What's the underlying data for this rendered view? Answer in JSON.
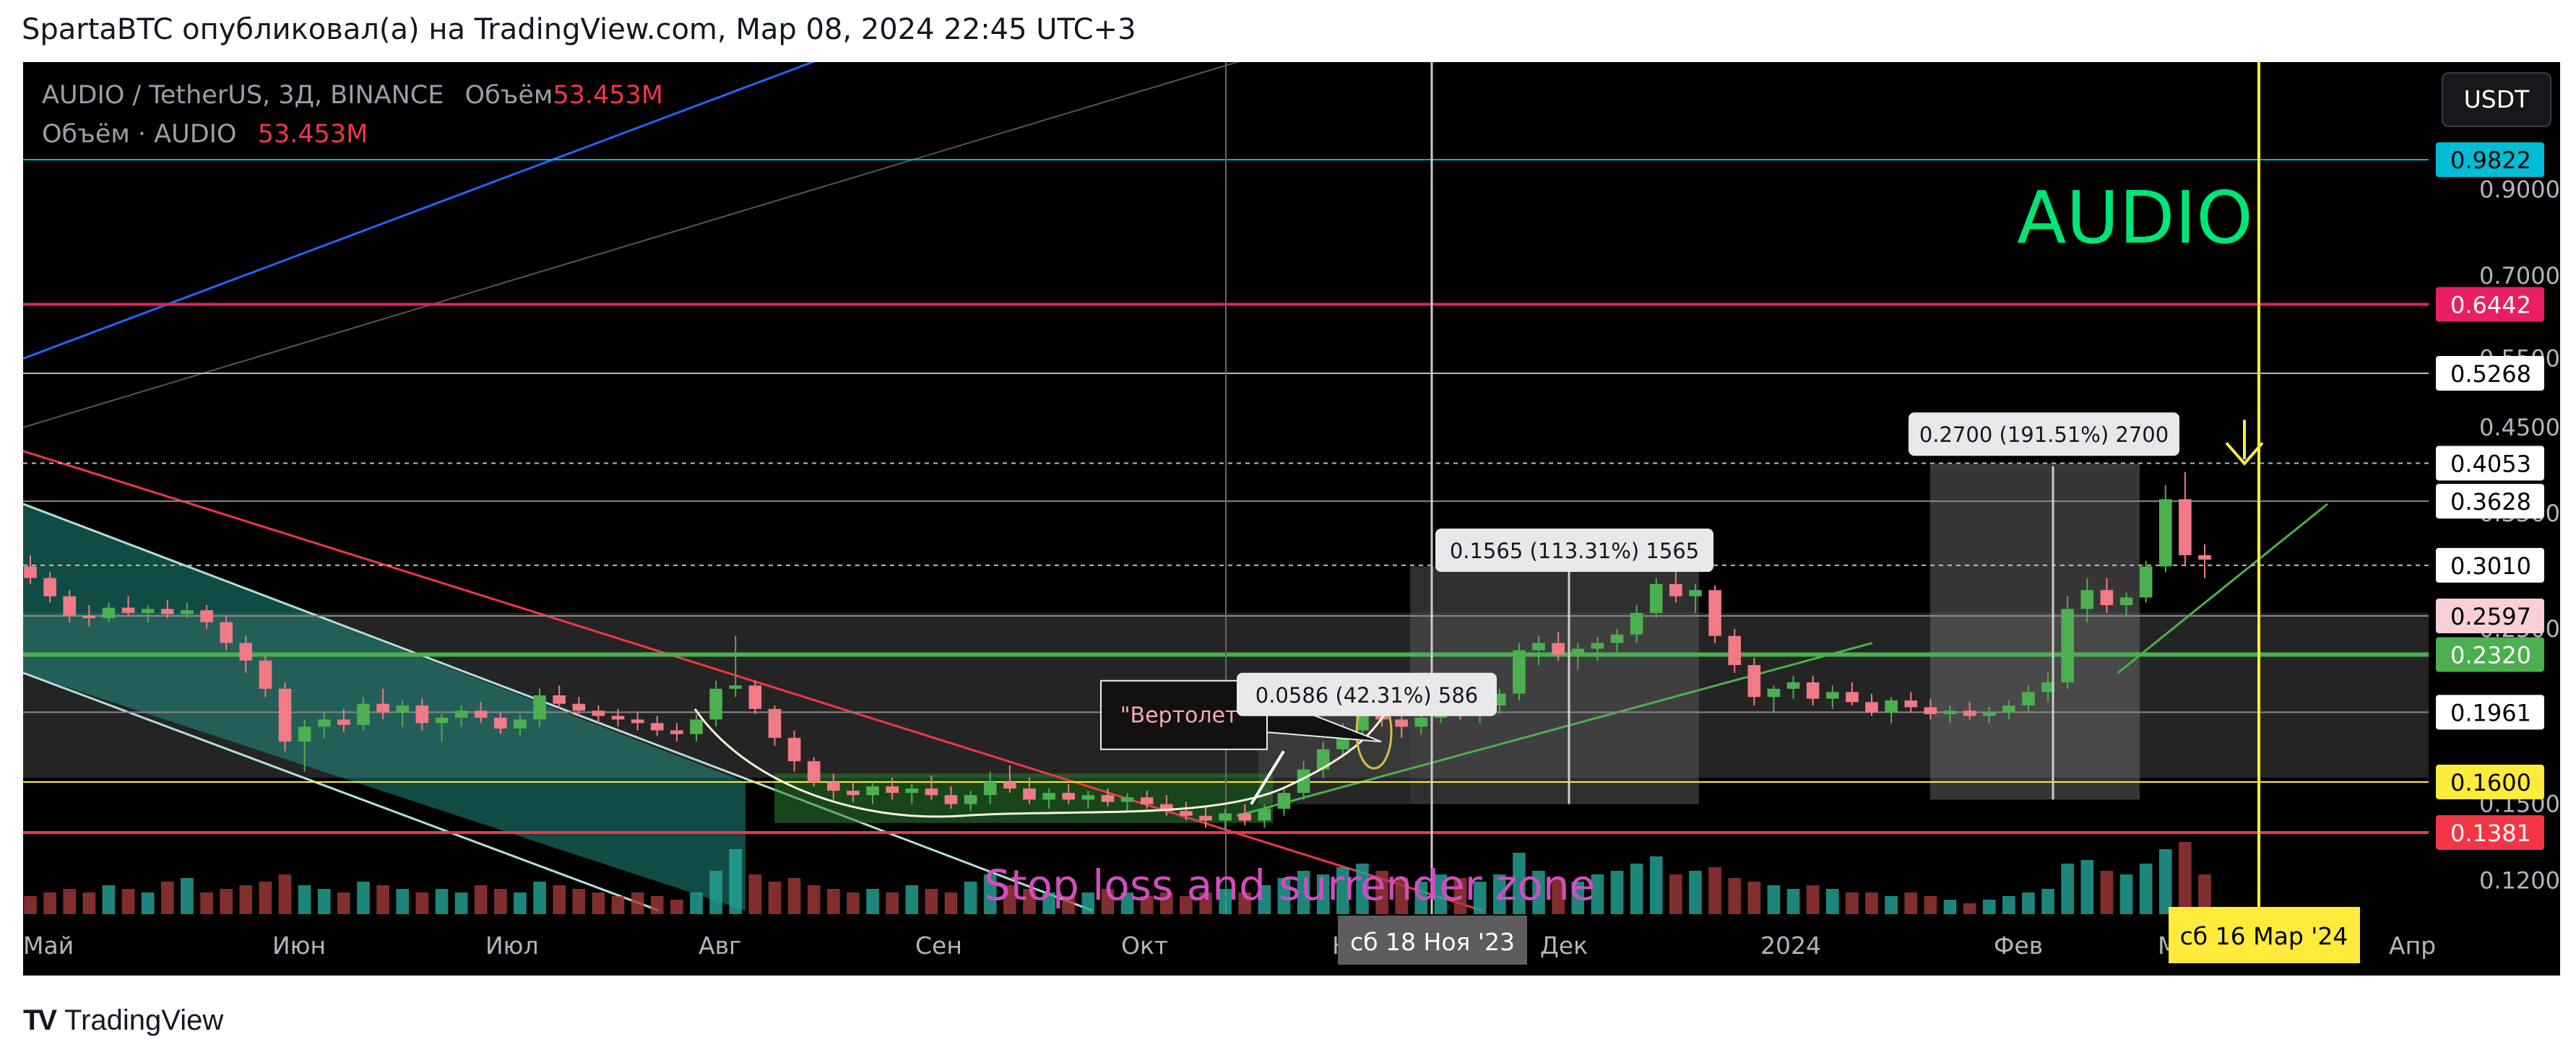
{
  "header": {
    "attribution": "SpartaBTC опубликовал(а) на TradingView.com, Мар 08, 2024 22:45 UTC+3"
  },
  "legend": {
    "symbol_line": "AUDIO / TetherUS, 3Д, BINANCE",
    "volume_label": "Объём",
    "volume_value": "53.453M",
    "volume_line_label": "Объём · AUDIO",
    "volume_line_value": "53.453M"
  },
  "currency_badge": "USDT",
  "annotations": {
    "big_title": "AUDIO",
    "stop_zone": "Stop loss and surrender zone",
    "callout": "\"Вертолет\"",
    "measure1": "0.0586 (42.31%) 586",
    "measure2": "0.1565 (113.31%) 1565",
    "measure3": "0.2700 (191.51%) 2700"
  },
  "time_axis": {
    "labels": [
      "Май",
      "Июн",
      "Июл",
      "Авг",
      "Сен",
      "Окт",
      "Ноя",
      "Дек",
      "2024",
      "Фев",
      "Мар",
      "Апр"
    ],
    "crosshair_left": "сб 18 Ноя '23",
    "crosshair_right": "сб 16 Мар '24"
  },
  "price_axis": {
    "ticks": [
      "0.9000",
      "0.7000",
      "0.5500",
      "0.4500",
      "0.3500",
      "0.2500",
      "0.1500",
      "0.1200"
    ],
    "tags": [
      {
        "text": "0.9822",
        "bg": "#00bcd4",
        "fg": "#000000"
      },
      {
        "text": "0.6442",
        "bg": "#e91e63",
        "fg": "#ffffff"
      },
      {
        "text": "0.5268",
        "bg": "#ffffff",
        "fg": "#000000"
      },
      {
        "text": "0.4053",
        "bg": "#ffffff",
        "fg": "#000000"
      },
      {
        "text": "0.3628",
        "bg": "#ffffff",
        "fg": "#000000"
      },
      {
        "text": "0.3010",
        "bg": "#ffffff",
        "fg": "#000000"
      },
      {
        "text": "0.2597",
        "bg": "#f8d0d5",
        "fg": "#000000"
      },
      {
        "text": "0.2320",
        "bg": "#4caf50",
        "fg": "#ffffff"
      },
      {
        "text": "0.1961",
        "bg": "#ffffff",
        "fg": "#000000"
      },
      {
        "text": "0.1600",
        "bg": "#ffeb3b",
        "fg": "#000000"
      },
      {
        "text": "0.1381",
        "bg": "#f23645",
        "fg": "#ffffff"
      }
    ]
  },
  "chart_data": {
    "type": "candlestick",
    "symbol": "AUDIO / TetherUS",
    "interval": "3Д",
    "exchange": "BINANCE",
    "scale": "log",
    "ylim": [
      0.11,
      1.2
    ],
    "levels": [
      0.9822,
      0.6442,
      0.5268,
      0.4053,
      0.3628,
      0.301,
      0.2597,
      0.232,
      0.1961,
      0.16,
      0.1381
    ],
    "candles_ohlc": [
      [
        0.3,
        0.31,
        0.285,
        0.29
      ],
      [
        0.29,
        0.295,
        0.27,
        0.275
      ],
      [
        0.275,
        0.28,
        0.255,
        0.26
      ],
      [
        0.26,
        0.268,
        0.252,
        0.258
      ],
      [
        0.258,
        0.27,
        0.255,
        0.266
      ],
      [
        0.266,
        0.275,
        0.26,
        0.262
      ],
      [
        0.262,
        0.268,
        0.255,
        0.265
      ],
      [
        0.265,
        0.272,
        0.258,
        0.261
      ],
      [
        0.261,
        0.27,
        0.258,
        0.264
      ],
      [
        0.264,
        0.268,
        0.25,
        0.255
      ],
      [
        0.255,
        0.26,
        0.235,
        0.24
      ],
      [
        0.24,
        0.245,
        0.22,
        0.228
      ],
      [
        0.228,
        0.232,
        0.205,
        0.21
      ],
      [
        0.21,
        0.214,
        0.175,
        0.18
      ],
      [
        0.18,
        0.192,
        0.165,
        0.188
      ],
      [
        0.188,
        0.196,
        0.182,
        0.192
      ],
      [
        0.192,
        0.198,
        0.185,
        0.189
      ],
      [
        0.189,
        0.205,
        0.186,
        0.201
      ],
      [
        0.201,
        0.21,
        0.192,
        0.196
      ],
      [
        0.196,
        0.203,
        0.188,
        0.2
      ],
      [
        0.2,
        0.204,
        0.186,
        0.19
      ],
      [
        0.19,
        0.195,
        0.18,
        0.193
      ],
      [
        0.193,
        0.2,
        0.188,
        0.197
      ],
      [
        0.197,
        0.202,
        0.19,
        0.193
      ],
      [
        0.193,
        0.196,
        0.184,
        0.187
      ],
      [
        0.187,
        0.195,
        0.183,
        0.192
      ],
      [
        0.192,
        0.21,
        0.188,
        0.206
      ],
      [
        0.206,
        0.212,
        0.198,
        0.201
      ],
      [
        0.201,
        0.205,
        0.194,
        0.197
      ],
      [
        0.197,
        0.2,
        0.19,
        0.194
      ],
      [
        0.194,
        0.198,
        0.188,
        0.192
      ],
      [
        0.192,
        0.196,
        0.186,
        0.19
      ],
      [
        0.19,
        0.194,
        0.183,
        0.186
      ],
      [
        0.186,
        0.19,
        0.18,
        0.184
      ],
      [
        0.184,
        0.195,
        0.18,
        0.192
      ],
      [
        0.192,
        0.215,
        0.188,
        0.21
      ],
      [
        0.21,
        0.245,
        0.205,
        0.212
      ],
      [
        0.212,
        0.215,
        0.195,
        0.198
      ],
      [
        0.198,
        0.2,
        0.178,
        0.182
      ],
      [
        0.182,
        0.186,
        0.165,
        0.17
      ],
      [
        0.17,
        0.172,
        0.158,
        0.16
      ],
      [
        0.16,
        0.164,
        0.152,
        0.156
      ],
      [
        0.156,
        0.16,
        0.151,
        0.154
      ],
      [
        0.154,
        0.16,
        0.15,
        0.158
      ],
      [
        0.158,
        0.162,
        0.152,
        0.155
      ],
      [
        0.155,
        0.159,
        0.15,
        0.157
      ],
      [
        0.157,
        0.163,
        0.152,
        0.154
      ],
      [
        0.154,
        0.158,
        0.148,
        0.15
      ],
      [
        0.15,
        0.156,
        0.147,
        0.154
      ],
      [
        0.154,
        0.165,
        0.15,
        0.16
      ],
      [
        0.16,
        0.168,
        0.155,
        0.157
      ],
      [
        0.157,
        0.162,
        0.15,
        0.152
      ],
      [
        0.152,
        0.157,
        0.148,
        0.155
      ],
      [
        0.155,
        0.159,
        0.15,
        0.152
      ],
      [
        0.152,
        0.156,
        0.148,
        0.154
      ],
      [
        0.154,
        0.157,
        0.149,
        0.151
      ],
      [
        0.151,
        0.155,
        0.147,
        0.153
      ],
      [
        0.153,
        0.156,
        0.148,
        0.15
      ],
      [
        0.15,
        0.154,
        0.145,
        0.147
      ],
      [
        0.147,
        0.151,
        0.143,
        0.145
      ],
      [
        0.145,
        0.149,
        0.14,
        0.143
      ],
      [
        0.143,
        0.148,
        0.139,
        0.146
      ],
      [
        0.146,
        0.15,
        0.141,
        0.143
      ],
      [
        0.143,
        0.15,
        0.14,
        0.148
      ],
      [
        0.148,
        0.158,
        0.145,
        0.155
      ],
      [
        0.155,
        0.17,
        0.152,
        0.166
      ],
      [
        0.166,
        0.18,
        0.162,
        0.176
      ],
      [
        0.176,
        0.19,
        0.172,
        0.186
      ],
      [
        0.186,
        0.205,
        0.182,
        0.196
      ],
      [
        0.196,
        0.212,
        0.188,
        0.192
      ],
      [
        0.192,
        0.198,
        0.182,
        0.188
      ],
      [
        0.188,
        0.196,
        0.184,
        0.193
      ],
      [
        0.193,
        0.205,
        0.19,
        0.201
      ],
      [
        0.201,
        0.208,
        0.192,
        0.197
      ],
      [
        0.197,
        0.204,
        0.19,
        0.2
      ],
      [
        0.2,
        0.21,
        0.195,
        0.207
      ],
      [
        0.207,
        0.24,
        0.203,
        0.235
      ],
      [
        0.235,
        0.245,
        0.225,
        0.24
      ],
      [
        0.24,
        0.248,
        0.228,
        0.232
      ],
      [
        0.232,
        0.24,
        0.222,
        0.236
      ],
      [
        0.236,
        0.244,
        0.228,
        0.24
      ],
      [
        0.24,
        0.25,
        0.232,
        0.246
      ],
      [
        0.246,
        0.268,
        0.24,
        0.262
      ],
      [
        0.262,
        0.29,
        0.258,
        0.285
      ],
      [
        0.285,
        0.3,
        0.27,
        0.275
      ],
      [
        0.275,
        0.285,
        0.262,
        0.28
      ],
      [
        0.28,
        0.284,
        0.24,
        0.245
      ],
      [
        0.245,
        0.25,
        0.22,
        0.225
      ],
      [
        0.225,
        0.23,
        0.2,
        0.205
      ],
      [
        0.205,
        0.212,
        0.196,
        0.21
      ],
      [
        0.21,
        0.218,
        0.204,
        0.214
      ],
      [
        0.214,
        0.218,
        0.2,
        0.204
      ],
      [
        0.204,
        0.212,
        0.198,
        0.208
      ],
      [
        0.208,
        0.214,
        0.2,
        0.202
      ],
      [
        0.202,
        0.207,
        0.194,
        0.196
      ],
      [
        0.196,
        0.205,
        0.19,
        0.203
      ],
      [
        0.203,
        0.208,
        0.196,
        0.199
      ],
      [
        0.199,
        0.204,
        0.192,
        0.195
      ],
      [
        0.195,
        0.2,
        0.19,
        0.197
      ],
      [
        0.197,
        0.202,
        0.192,
        0.194
      ],
      [
        0.194,
        0.199,
        0.19,
        0.196
      ],
      [
        0.196,
        0.203,
        0.192,
        0.2
      ],
      [
        0.2,
        0.212,
        0.196,
        0.208
      ],
      [
        0.208,
        0.22,
        0.202,
        0.214
      ],
      [
        0.214,
        0.275,
        0.21,
        0.265
      ],
      [
        0.265,
        0.29,
        0.255,
        0.28
      ],
      [
        0.28,
        0.29,
        0.262,
        0.268
      ],
      [
        0.268,
        0.278,
        0.26,
        0.274
      ],
      [
        0.274,
        0.305,
        0.27,
        0.3
      ],
      [
        0.3,
        0.38,
        0.295,
        0.365
      ],
      [
        0.365,
        0.395,
        0.3,
        0.31
      ],
      [
        0.31,
        0.32,
        0.29,
        0.306
      ]
    ],
    "volume_relative": [
      0.25,
      0.3,
      0.35,
      0.3,
      0.4,
      0.35,
      0.3,
      0.45,
      0.5,
      0.3,
      0.35,
      0.4,
      0.45,
      0.55,
      0.4,
      0.35,
      0.3,
      0.45,
      0.4,
      0.35,
      0.3,
      0.35,
      0.3,
      0.4,
      0.35,
      0.3,
      0.45,
      0.4,
      0.35,
      0.3,
      0.25,
      0.3,
      0.25,
      0.2,
      0.3,
      0.6,
      0.9,
      0.55,
      0.45,
      0.5,
      0.4,
      0.35,
      0.3,
      0.35,
      0.3,
      0.4,
      0.35,
      0.3,
      0.45,
      0.55,
      0.4,
      0.35,
      0.3,
      0.25,
      0.3,
      0.35,
      0.3,
      0.25,
      0.3,
      0.25,
      0.3,
      0.35,
      0.3,
      0.4,
      0.5,
      0.6,
      0.55,
      0.65,
      0.7,
      0.6,
      0.5,
      0.45,
      0.55,
      0.5,
      0.45,
      0.55,
      0.85,
      0.6,
      0.5,
      0.45,
      0.55,
      0.6,
      0.7,
      0.8,
      0.55,
      0.6,
      0.65,
      0.5,
      0.45,
      0.4,
      0.35,
      0.4,
      0.35,
      0.3,
      0.3,
      0.25,
      0.3,
      0.25,
      0.2,
      0.15,
      0.2,
      0.25,
      0.3,
      0.35,
      0.7,
      0.75,
      0.6,
      0.55,
      0.7,
      0.9,
      1.0,
      0.55
    ]
  }
}
